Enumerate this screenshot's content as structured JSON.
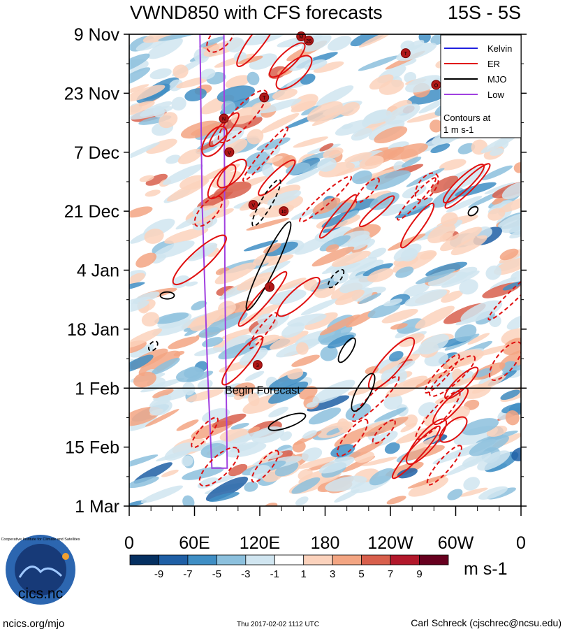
{
  "chart_data": {
    "type": "heatmap",
    "title": "VWND850 with CFS forecasts",
    "region_label": "15S - 5S",
    "x_ticks": [
      "0",
      "60E",
      "120E",
      "180",
      "120W",
      "60W",
      "0"
    ],
    "x_range_deg": [
      0,
      360
    ],
    "y_ticks": [
      "9 Nov",
      "23 Nov",
      "7 Dec",
      "21 Dec",
      "4 Jan",
      "18 Jan",
      "1 Feb",
      "15 Feb",
      "1 Mar"
    ],
    "y_range_days": [
      0,
      112
    ],
    "forecast_marker_label": "Begin Forecast",
    "forecast_marker_day": 84,
    "colorbar": {
      "units": "m s-1",
      "labels": [
        "-9",
        "-7",
        "-5",
        "-3",
        "-1",
        "1",
        "3",
        "5",
        "7",
        "9"
      ],
      "colors": [
        "#053061",
        "#1f5fa5",
        "#3f8ec4",
        "#8cc0dd",
        "#d0e5f0",
        "#ffffff",
        "#fbd2bc",
        "#f3a582",
        "#d85f4c",
        "#b2182b",
        "#67001f"
      ]
    },
    "legend": {
      "entries": [
        {
          "name": "Kelvin",
          "color": "#2020e0"
        },
        {
          "name": "ER",
          "color": "#e01010"
        },
        {
          "name": "MJO",
          "color": "#000000"
        },
        {
          "name": "Low",
          "color": "#a040e0"
        }
      ],
      "note_line1": "Contours at",
      "note_line2": "1 m s-1",
      "placement": "top-right"
    },
    "low_band_lon": [
      [
        65,
        0
      ],
      [
        67,
        40
      ],
      [
        72,
        80
      ],
      [
        76,
        103
      ],
      [
        90,
        103
      ],
      [
        88,
        60
      ],
      [
        87,
        0
      ]
    ],
    "storm_markers": [
      {
        "label": "M",
        "lon": 158,
        "day": 0.5
      },
      {
        "label": "26",
        "lon": 165,
        "day": 1.5
      },
      {
        "label": "T",
        "lon": 254,
        "day": 4.5
      },
      {
        "label": "T",
        "lon": 124,
        "day": 15
      },
      {
        "label": "N",
        "lon": 87,
        "day": 20
      },
      {
        "label": "V",
        "lon": 92,
        "day": 28
      },
      {
        "label": "V",
        "lon": 114,
        "day": 40.5
      },
      {
        "label": "10",
        "lon": 142,
        "day": 42
      },
      {
        "label": "I",
        "lon": 129,
        "day": 60
      },
      {
        "label": "3",
        "lon": 118,
        "day": 78.5
      },
      {
        "label": "O",
        "lon": 282,
        "day": 12
      }
    ]
  },
  "footer": {
    "logo_text": "cics.nc",
    "logo_ring_text": "Cooperative Institute for Climate and Satellites",
    "left": "ncics.org/mjo",
    "center": "Thu 2017-02-02 1112 UTC",
    "right": "Carl Schreck (cjschrec@ncsu.edu)"
  },
  "colors": {
    "er": "#e01010",
    "mjo": "#000000",
    "low": "#a040e0",
    "kelvin": "#2020e0"
  }
}
